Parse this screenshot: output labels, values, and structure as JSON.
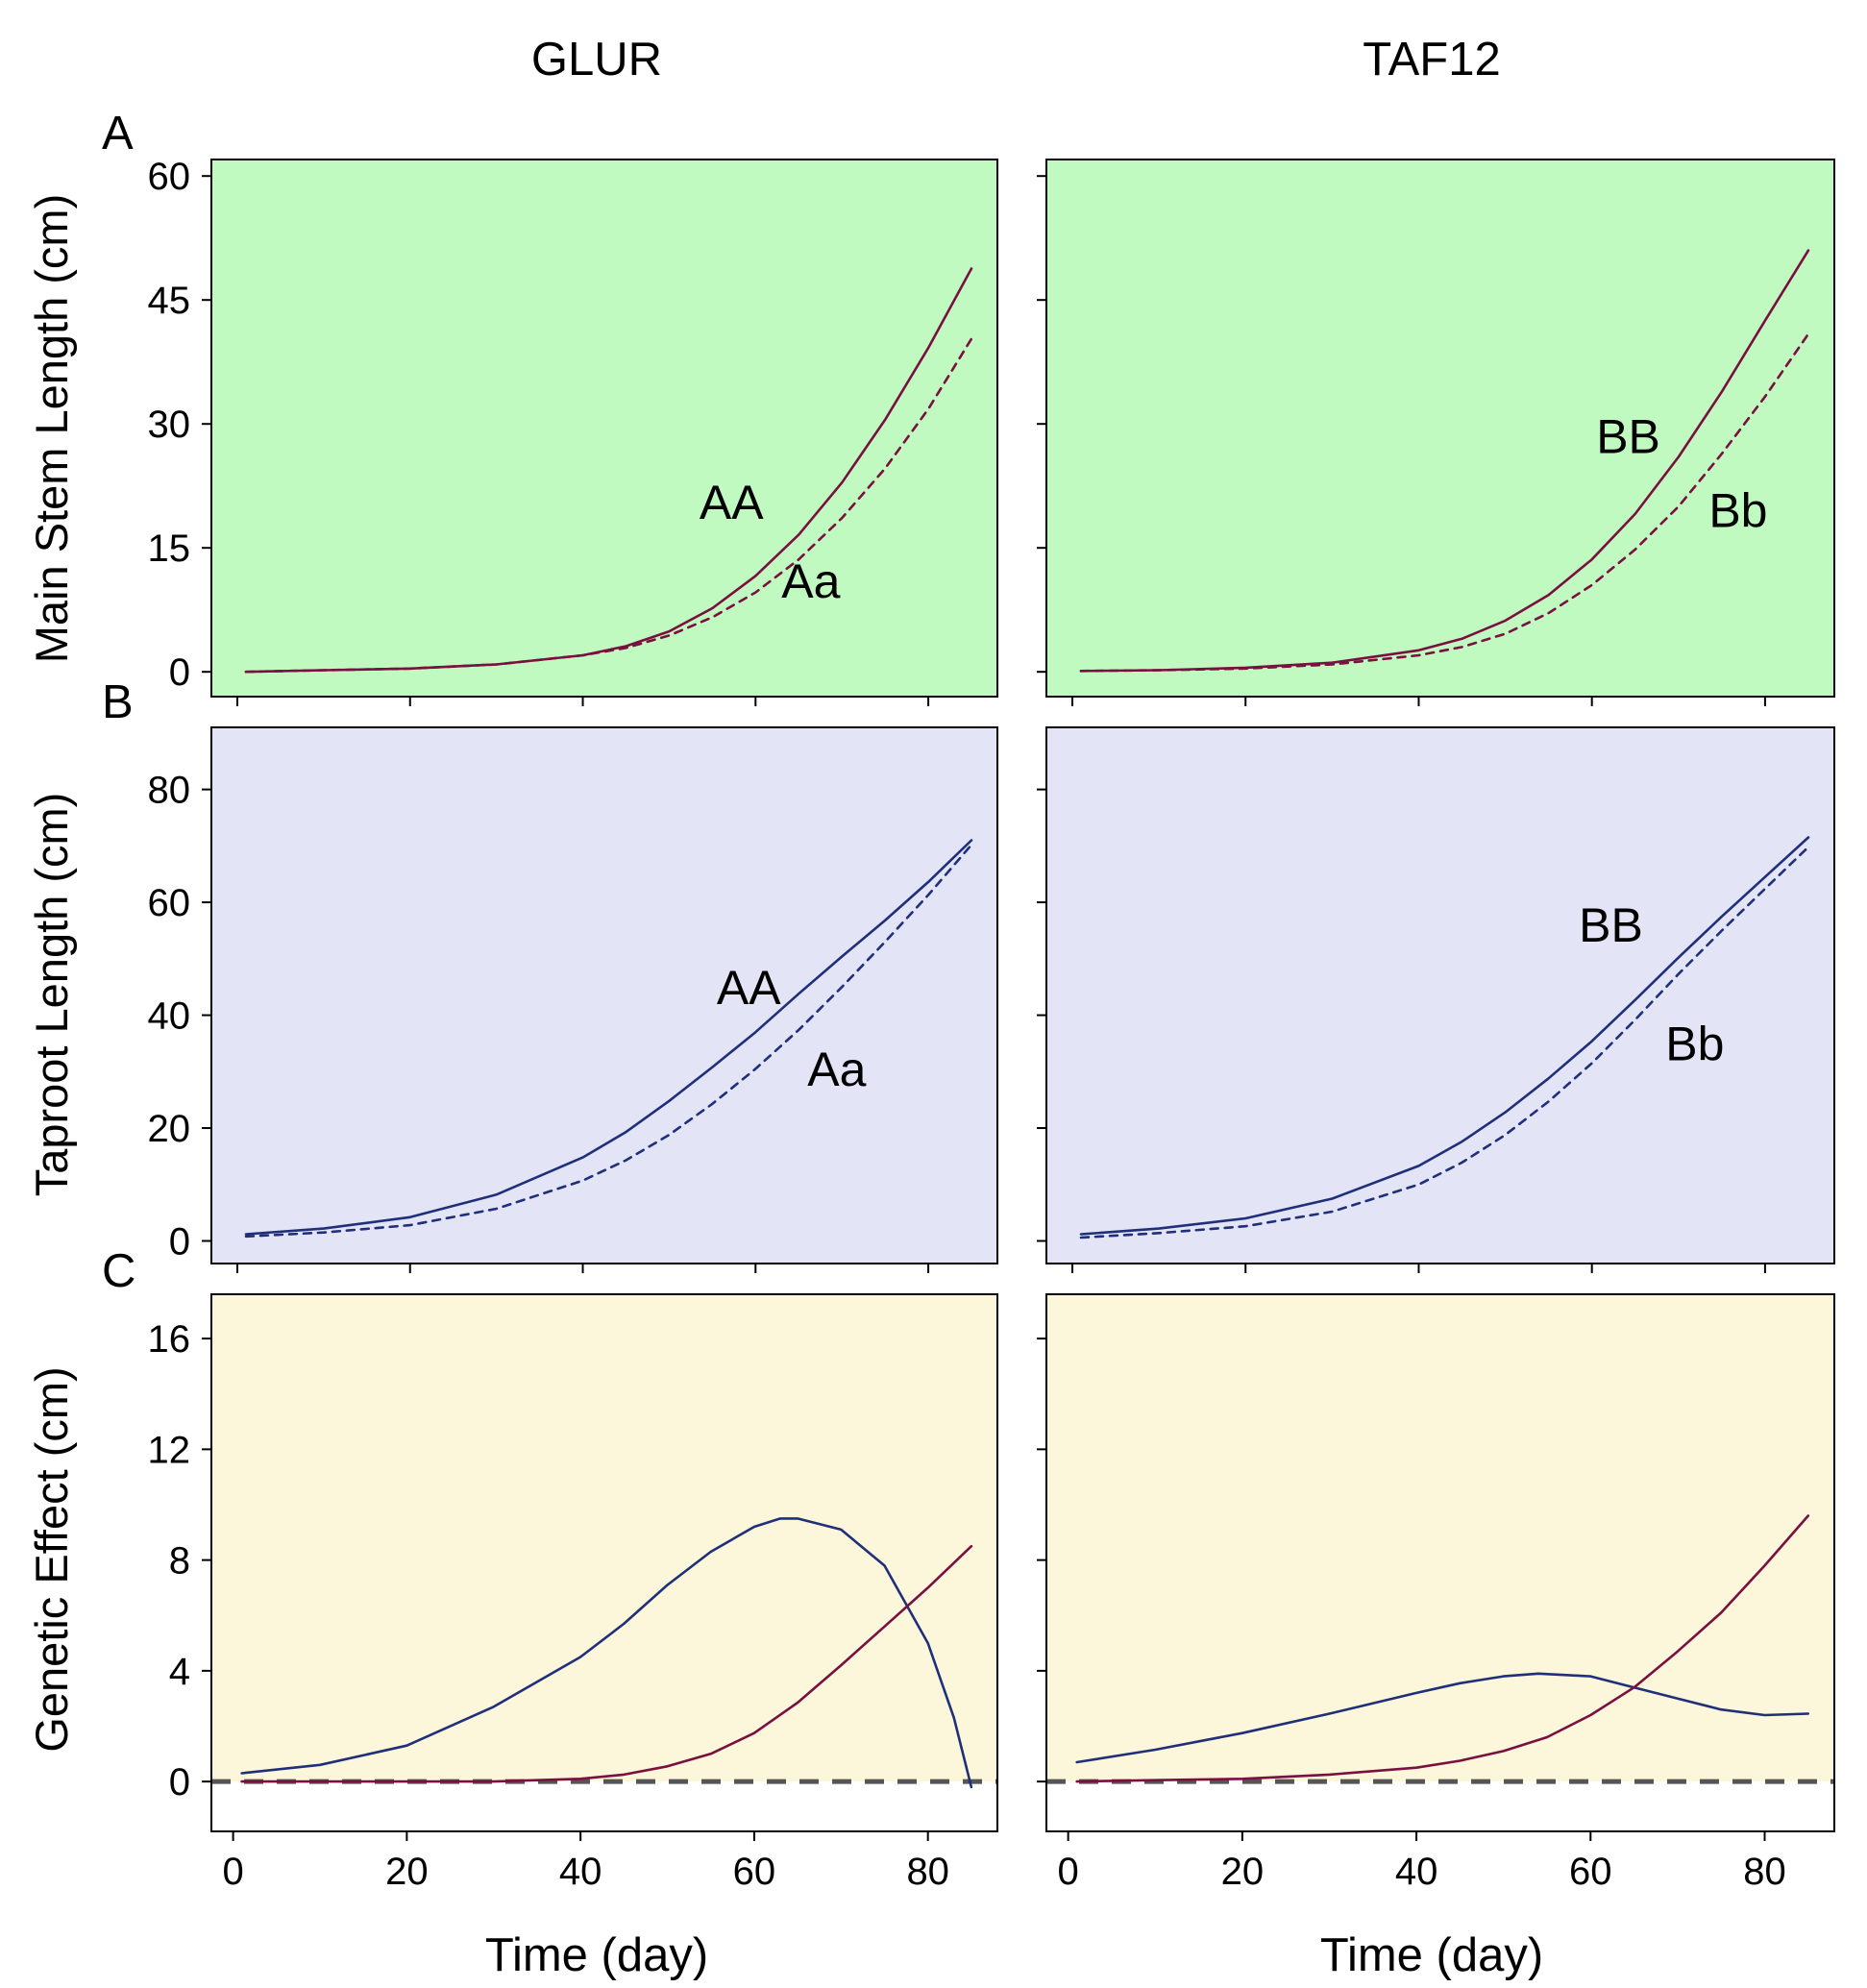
{
  "figure": {
    "column_titles": [
      "GLUR",
      "TAF12"
    ],
    "row_letters": [
      "A",
      "B",
      "C"
    ],
    "row_ylabels": [
      "Main Stem Length (cm)",
      "Taproot Length (cm)",
      "Genetic Effect (cm)"
    ],
    "xlabel": "Time (day)",
    "colors": {
      "stem": "#7a1040",
      "root": "#1f2f7a",
      "bg_stem": "#c0fac0",
      "bg_root": "#e3e5f7",
      "bg_effect": "#fcf6da",
      "zero_line": "#555555"
    }
  },
  "chart_data": [
    {
      "id": "A-GLUR",
      "type": "line",
      "row": 0,
      "col": 0,
      "xlim": [
        -3,
        88
      ],
      "ylim": [
        -3,
        62
      ],
      "xticks": [
        0,
        20,
        40,
        60,
        80
      ],
      "yticks": [
        0,
        15,
        30,
        45,
        60
      ],
      "series": [
        {
          "name": "AA",
          "color_key": "stem",
          "dash": false,
          "x": [
            1,
            10,
            20,
            30,
            40,
            45,
            50,
            55,
            60,
            65,
            70,
            75,
            80,
            85
          ],
          "y": [
            0.0,
            0.2,
            0.4,
            0.9,
            2.0,
            3.1,
            4.9,
            7.7,
            11.6,
            16.6,
            22.9,
            30.5,
            39.2,
            48.8
          ]
        },
        {
          "name": "Aa",
          "color_key": "stem",
          "dash": true,
          "x": [
            1,
            10,
            20,
            30,
            40,
            45,
            50,
            55,
            60,
            65,
            70,
            75,
            80,
            85
          ],
          "y": [
            0.0,
            0.2,
            0.4,
            0.9,
            2.0,
            2.9,
            4.4,
            6.6,
            9.6,
            13.6,
            18.6,
            24.6,
            31.8,
            40.3
          ]
        }
      ],
      "annotations": [
        {
          "text": "AA",
          "x": 53.5,
          "y": 18.5
        },
        {
          "text": "Aa",
          "x": 63,
          "y": 9
        }
      ]
    },
    {
      "id": "A-TAF12",
      "type": "line",
      "row": 0,
      "col": 1,
      "xlim": [
        -3,
        88
      ],
      "ylim": [
        -3,
        62
      ],
      "xticks": [
        0,
        20,
        40,
        60,
        80
      ],
      "yticks": [
        0,
        15,
        30,
        45,
        60
      ],
      "series": [
        {
          "name": "BB",
          "color_key": "stem",
          "dash": false,
          "x": [
            1,
            10,
            20,
            30,
            40,
            45,
            50,
            55,
            60,
            65,
            70,
            75,
            80,
            85
          ],
          "y": [
            0.1,
            0.2,
            0.5,
            1.1,
            2.6,
            4.0,
            6.2,
            9.3,
            13.6,
            19.1,
            26.0,
            33.9,
            42.5,
            51.0
          ]
        },
        {
          "name": "Bb",
          "color_key": "stem",
          "dash": true,
          "x": [
            1,
            10,
            20,
            30,
            40,
            45,
            50,
            55,
            60,
            65,
            70,
            75,
            80,
            85
          ],
          "y": [
            0.1,
            0.2,
            0.4,
            0.9,
            2.0,
            3.0,
            4.6,
            7.1,
            10.5,
            14.8,
            20.0,
            26.4,
            33.3,
            40.9
          ]
        },
        {
          "name": "",
          "color_key": "stem",
          "dash": false,
          "x": [],
          "y": []
        }
      ],
      "annotations": [
        {
          "text": "BB",
          "x": 60.5,
          "y": 26.5
        },
        {
          "text": "Bb",
          "x": 73.5,
          "y": 17.5
        }
      ]
    },
    {
      "id": "B-GLUR",
      "type": "line",
      "row": 1,
      "col": 0,
      "xlim": [
        -3,
        88
      ],
      "ylim": [
        -4,
        91
      ],
      "xticks": [
        0,
        20,
        40,
        60,
        80
      ],
      "yticks": [
        0,
        20,
        40,
        60,
        80
      ],
      "series": [
        {
          "name": "AA",
          "color_key": "root",
          "dash": false,
          "x": [
            1,
            10,
            20,
            30,
            40,
            45,
            50,
            55,
            60,
            65,
            70,
            75,
            80,
            85
          ],
          "y": [
            1.2,
            2.2,
            4.2,
            8.2,
            14.8,
            19.3,
            24.8,
            30.8,
            37.0,
            43.8,
            50.4,
            56.8,
            63.6,
            71.0
          ]
        },
        {
          "name": "Aa",
          "color_key": "root",
          "dash": true,
          "x": [
            1,
            10,
            20,
            30,
            40,
            45,
            50,
            55,
            60,
            65,
            70,
            75,
            80,
            85
          ],
          "y": [
            0.8,
            1.5,
            2.8,
            5.7,
            10.7,
            14.3,
            18.8,
            24.3,
            30.5,
            37.4,
            45.0,
            53.0,
            61.3,
            70.2
          ]
        }
      ],
      "annotations": [
        {
          "text": "AA",
          "x": 55.5,
          "y": 42
        },
        {
          "text": "Aa",
          "x": 66,
          "y": 27.5
        }
      ]
    },
    {
      "id": "B-TAF12",
      "type": "line",
      "row": 1,
      "col": 1,
      "xlim": [
        -3,
        88
      ],
      "ylim": [
        -4,
        91
      ],
      "xticks": [
        0,
        20,
        40,
        60,
        80
      ],
      "yticks": [
        0,
        20,
        40,
        60,
        80
      ],
      "series": [
        {
          "name": "BB",
          "color_key": "root",
          "dash": false,
          "x": [
            1,
            10,
            20,
            30,
            40,
            45,
            50,
            55,
            60,
            65,
            70,
            75,
            80,
            85
          ],
          "y": [
            1.2,
            2.2,
            4.0,
            7.5,
            13.3,
            17.6,
            22.8,
            28.8,
            35.4,
            42.7,
            50.2,
            57.5,
            64.5,
            71.5
          ]
        },
        {
          "name": "Bb",
          "color_key": "root",
          "dash": true,
          "x": [
            1,
            10,
            20,
            30,
            40,
            45,
            50,
            55,
            60,
            65,
            70,
            75,
            80,
            85
          ],
          "y": [
            0.6,
            1.4,
            2.6,
            5.2,
            10.0,
            13.9,
            18.8,
            24.7,
            31.5,
            39.2,
            47.3,
            55.0,
            62.4,
            69.8
          ]
        }
      ],
      "annotations": [
        {
          "text": "BB",
          "x": 58.5,
          "y": 53
        },
        {
          "text": "Bb",
          "x": 68.5,
          "y": 32
        }
      ]
    },
    {
      "id": "C-GLUR",
      "type": "line",
      "row": 2,
      "col": 0,
      "xlim": [
        -2.5,
        88
      ],
      "ylim": [
        -1.8,
        17.6
      ],
      "xticks": [
        0,
        20,
        40,
        60,
        80
      ],
      "yticks": [
        0,
        4,
        8,
        12,
        16
      ],
      "series": [
        {
          "name": "",
          "color_key": "root",
          "dash": false,
          "x": [
            1,
            10,
            20,
            30,
            40,
            45,
            50,
            55,
            60,
            63,
            65,
            70,
            75,
            80,
            83,
            85
          ],
          "y": [
            0.3,
            0.6,
            1.3,
            2.7,
            4.5,
            5.7,
            7.1,
            8.3,
            9.2,
            9.5,
            9.5,
            9.1,
            7.8,
            5.0,
            2.3,
            -0.2
          ]
        },
        {
          "name": "",
          "color_key": "stem",
          "dash": false,
          "x": [
            1,
            10,
            20,
            30,
            40,
            45,
            50,
            55,
            60,
            65,
            70,
            75,
            80,
            85
          ],
          "y": [
            0.0,
            0.0,
            0.0,
            0.0,
            0.1,
            0.25,
            0.55,
            1.0,
            1.75,
            2.85,
            4.2,
            5.6,
            7.0,
            8.5
          ]
        }
      ],
      "zero_line": true,
      "annotations": []
    },
    {
      "id": "C-TAF12",
      "type": "line",
      "row": 2,
      "col": 1,
      "xlim": [
        -2.5,
        88
      ],
      "ylim": [
        -1.8,
        17.6
      ],
      "xticks": [
        0,
        20,
        40,
        60,
        80
      ],
      "yticks": [
        0,
        4,
        8,
        12,
        16
      ],
      "series": [
        {
          "name": "",
          "color_key": "root",
          "dash": false,
          "x": [
            1,
            10,
            20,
            30,
            40,
            45,
            50,
            54,
            60,
            65,
            70,
            75,
            80,
            85
          ],
          "y": [
            0.7,
            1.15,
            1.75,
            2.45,
            3.2,
            3.55,
            3.8,
            3.9,
            3.8,
            3.4,
            3.0,
            2.6,
            2.4,
            2.45
          ]
        },
        {
          "name": "",
          "color_key": "stem",
          "dash": false,
          "x": [
            1,
            10,
            20,
            30,
            40,
            45,
            50,
            55,
            60,
            65,
            70,
            75,
            80,
            85
          ],
          "y": [
            0.0,
            0.05,
            0.1,
            0.25,
            0.5,
            0.75,
            1.1,
            1.6,
            2.4,
            3.4,
            4.7,
            6.1,
            7.8,
            9.6
          ]
        }
      ],
      "zero_line": true,
      "annotations": []
    }
  ]
}
